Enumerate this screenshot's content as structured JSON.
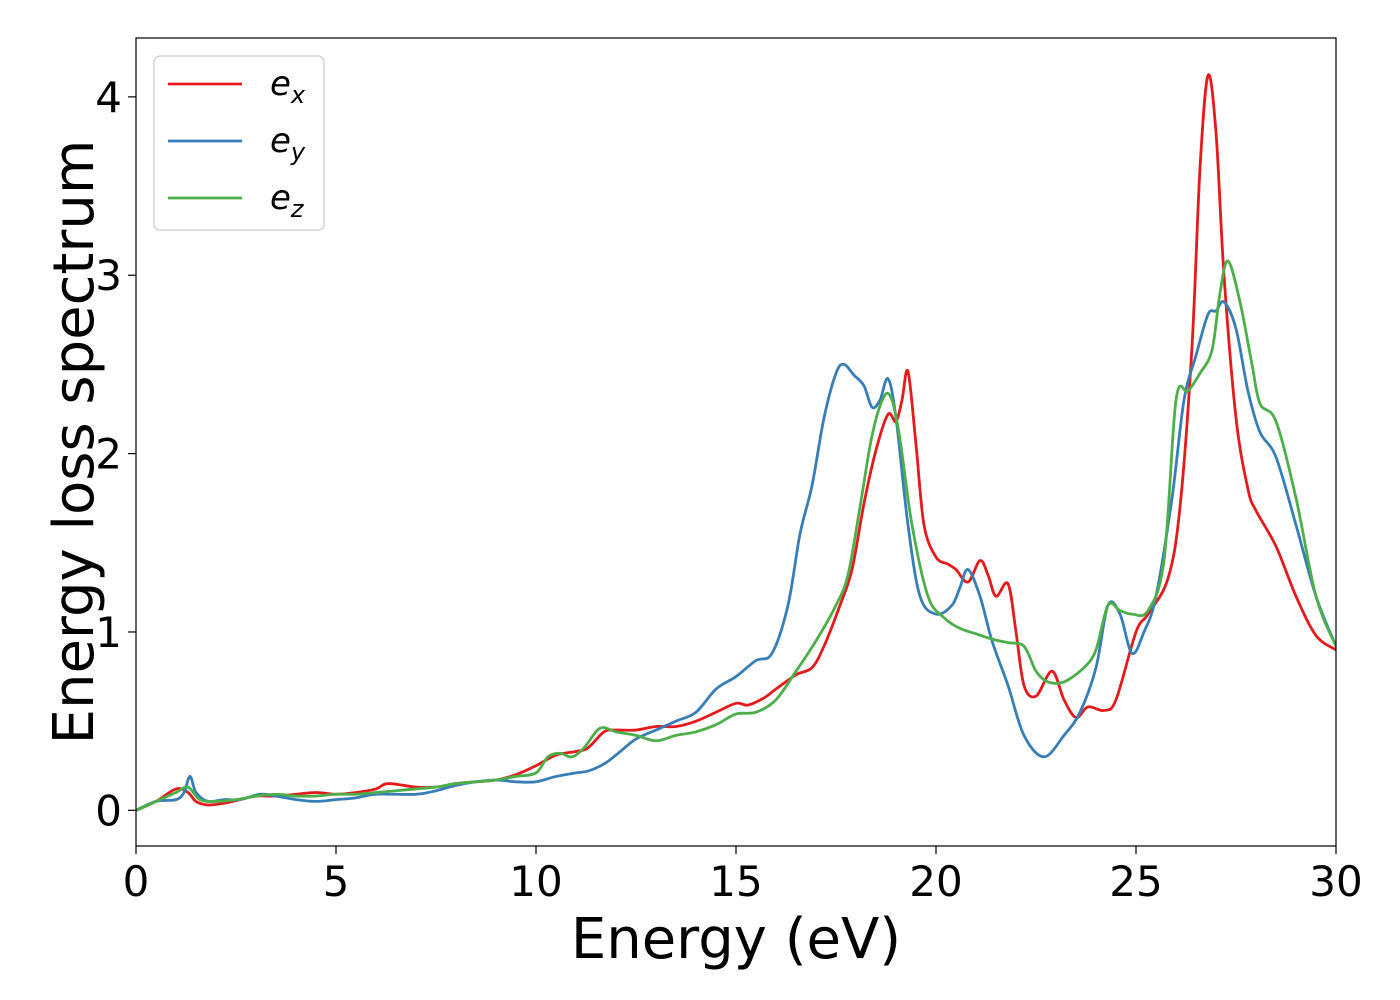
{
  "chart_data": {
    "type": "line",
    "xlabel": "Energy (eV)",
    "ylabel": "Energy loss spectrum",
    "xlim": [
      0,
      30
    ],
    "ylim": [
      -0.2,
      4.33
    ],
    "xticks": [
      0,
      5,
      10,
      15,
      20,
      25,
      30
    ],
    "yticks": [
      0,
      1,
      2,
      3,
      4
    ],
    "grid": false,
    "legend": "upper-left",
    "series": [
      {
        "name": "e",
        "sub": "x",
        "color": "#e41a1c",
        "points": [
          [
            0,
            0
          ],
          [
            0.5,
            0.05
          ],
          [
            1.0,
            0.12
          ],
          [
            1.3,
            0.1
          ],
          [
            1.5,
            0.05
          ],
          [
            1.8,
            0.03
          ],
          [
            2.2,
            0.04
          ],
          [
            2.6,
            0.06
          ],
          [
            3,
            0.08
          ],
          [
            3.5,
            0.08
          ],
          [
            4,
            0.09
          ],
          [
            4.5,
            0.1
          ],
          [
            5,
            0.09
          ],
          [
            5.5,
            0.1
          ],
          [
            6,
            0.12
          ],
          [
            6.3,
            0.15
          ],
          [
            7,
            0.13
          ],
          [
            7.5,
            0.13
          ],
          [
            8,
            0.15
          ],
          [
            8.5,
            0.16
          ],
          [
            9,
            0.17
          ],
          [
            9.5,
            0.2
          ],
          [
            10,
            0.25
          ],
          [
            10.5,
            0.31
          ],
          [
            11,
            0.33
          ],
          [
            11.3,
            0.35
          ],
          [
            11.7,
            0.44
          ],
          [
            12,
            0.45
          ],
          [
            12.5,
            0.45
          ],
          [
            13,
            0.47
          ],
          [
            13.5,
            0.47
          ],
          [
            14,
            0.5
          ],
          [
            14.5,
            0.55
          ],
          [
            15,
            0.6
          ],
          [
            15.3,
            0.59
          ],
          [
            15.7,
            0.63
          ],
          [
            16,
            0.68
          ],
          [
            16.5,
            0.76
          ],
          [
            16.9,
            0.8
          ],
          [
            17.2,
            0.92
          ],
          [
            17.6,
            1.15
          ],
          [
            17.9,
            1.35
          ],
          [
            18.2,
            1.72
          ],
          [
            18.5,
            2.02
          ],
          [
            18.8,
            2.22
          ],
          [
            19.0,
            2.18
          ],
          [
            19.15,
            2.3
          ],
          [
            19.3,
            2.46
          ],
          [
            19.5,
            2.05
          ],
          [
            19.7,
            1.6
          ],
          [
            20,
            1.42
          ],
          [
            20.3,
            1.38
          ],
          [
            20.5,
            1.35
          ],
          [
            20.8,
            1.28
          ],
          [
            21.1,
            1.4
          ],
          [
            21.3,
            1.32
          ],
          [
            21.5,
            1.2
          ],
          [
            21.8,
            1.27
          ],
          [
            22,
            1.0
          ],
          [
            22.2,
            0.7
          ],
          [
            22.5,
            0.64
          ],
          [
            22.9,
            0.78
          ],
          [
            23.2,
            0.62
          ],
          [
            23.5,
            0.52
          ],
          [
            23.8,
            0.58
          ],
          [
            24.2,
            0.56
          ],
          [
            24.5,
            0.62
          ],
          [
            25,
            1.0
          ],
          [
            25.3,
            1.1
          ],
          [
            25.8,
            1.3
          ],
          [
            26.1,
            1.7
          ],
          [
            26.4,
            2.6
          ],
          [
            26.6,
            3.6
          ],
          [
            26.8,
            4.12
          ],
          [
            27.0,
            3.8
          ],
          [
            27.2,
            3.0
          ],
          [
            27.5,
            2.2
          ],
          [
            27.8,
            1.8
          ],
          [
            28,
            1.68
          ],
          [
            28.5,
            1.48
          ],
          [
            29,
            1.2
          ],
          [
            29.5,
            0.98
          ],
          [
            30,
            0.9
          ]
        ]
      },
      {
        "name": "e",
        "sub": "y",
        "color": "#377eb8",
        "points": [
          [
            0,
            0
          ],
          [
            0.5,
            0.05
          ],
          [
            1.0,
            0.06
          ],
          [
            1.2,
            0.1
          ],
          [
            1.35,
            0.19
          ],
          [
            1.5,
            0.1
          ],
          [
            1.8,
            0.05
          ],
          [
            2.2,
            0.06
          ],
          [
            2.6,
            0.06
          ],
          [
            3.1,
            0.09
          ],
          [
            3.5,
            0.08
          ],
          [
            4,
            0.06
          ],
          [
            4.5,
            0.05
          ],
          [
            5,
            0.06
          ],
          [
            5.5,
            0.07
          ],
          [
            6,
            0.09
          ],
          [
            7,
            0.09
          ],
          [
            7.5,
            0.11
          ],
          [
            8,
            0.14
          ],
          [
            8.5,
            0.16
          ],
          [
            9,
            0.17
          ],
          [
            9.5,
            0.16
          ],
          [
            10,
            0.16
          ],
          [
            10.5,
            0.19
          ],
          [
            11,
            0.21
          ],
          [
            11.3,
            0.22
          ],
          [
            11.7,
            0.26
          ],
          [
            12,
            0.31
          ],
          [
            12.5,
            0.4
          ],
          [
            13,
            0.45
          ],
          [
            13.5,
            0.5
          ],
          [
            14,
            0.55
          ],
          [
            14.5,
            0.68
          ],
          [
            15,
            0.75
          ],
          [
            15.5,
            0.84
          ],
          [
            15.9,
            0.88
          ],
          [
            16.3,
            1.15
          ],
          [
            16.6,
            1.55
          ],
          [
            16.9,
            1.82
          ],
          [
            17.2,
            2.2
          ],
          [
            17.5,
            2.45
          ],
          [
            17.7,
            2.5
          ],
          [
            17.95,
            2.44
          ],
          [
            18.2,
            2.38
          ],
          [
            18.4,
            2.26
          ],
          [
            18.6,
            2.3
          ],
          [
            18.8,
            2.42
          ],
          [
            19.0,
            2.2
          ],
          [
            19.3,
            1.6
          ],
          [
            19.6,
            1.2
          ],
          [
            20,
            1.1
          ],
          [
            20.4,
            1.15
          ],
          [
            20.6,
            1.25
          ],
          [
            20.8,
            1.35
          ],
          [
            21.1,
            1.2
          ],
          [
            21.4,
            0.95
          ],
          [
            21.8,
            0.7
          ],
          [
            22.2,
            0.42
          ],
          [
            22.7,
            0.3
          ],
          [
            23.2,
            0.42
          ],
          [
            23.6,
            0.55
          ],
          [
            24.0,
            0.8
          ],
          [
            24.3,
            1.15
          ],
          [
            24.6,
            1.1
          ],
          [
            24.9,
            0.88
          ],
          [
            25.2,
            1.0
          ],
          [
            25.5,
            1.2
          ],
          [
            25.9,
            1.75
          ],
          [
            26.2,
            2.3
          ],
          [
            26.5,
            2.55
          ],
          [
            26.8,
            2.78
          ],
          [
            27.0,
            2.8
          ],
          [
            27.2,
            2.85
          ],
          [
            27.5,
            2.7
          ],
          [
            27.8,
            2.35
          ],
          [
            28.1,
            2.12
          ],
          [
            28.5,
            1.98
          ],
          [
            29,
            1.6
          ],
          [
            29.5,
            1.2
          ],
          [
            30,
            0.92
          ]
        ]
      },
      {
        "name": "e",
        "sub": "z",
        "color": "#4daf4a",
        "points": [
          [
            0,
            0
          ],
          [
            0.5,
            0.05
          ],
          [
            1.0,
            0.1
          ],
          [
            1.3,
            0.13
          ],
          [
            1.6,
            0.06
          ],
          [
            2.0,
            0.05
          ],
          [
            2.5,
            0.06
          ],
          [
            3,
            0.08
          ],
          [
            3.5,
            0.09
          ],
          [
            4,
            0.08
          ],
          [
            4.5,
            0.08
          ],
          [
            5,
            0.09
          ],
          [
            5.5,
            0.09
          ],
          [
            6,
            0.1
          ],
          [
            6.5,
            0.11
          ],
          [
            7,
            0.12
          ],
          [
            7.5,
            0.13
          ],
          [
            8,
            0.15
          ],
          [
            8.5,
            0.16
          ],
          [
            9,
            0.17
          ],
          [
            9.5,
            0.19
          ],
          [
            10,
            0.21
          ],
          [
            10.3,
            0.3
          ],
          [
            10.6,
            0.32
          ],
          [
            10.9,
            0.3
          ],
          [
            11.2,
            0.35
          ],
          [
            11.6,
            0.46
          ],
          [
            12,
            0.44
          ],
          [
            12.5,
            0.42
          ],
          [
            13,
            0.39
          ],
          [
            13.5,
            0.42
          ],
          [
            14,
            0.44
          ],
          [
            14.5,
            0.48
          ],
          [
            15,
            0.54
          ],
          [
            15.5,
            0.55
          ],
          [
            16,
            0.62
          ],
          [
            16.5,
            0.78
          ],
          [
            17,
            0.95
          ],
          [
            17.5,
            1.15
          ],
          [
            17.8,
            1.32
          ],
          [
            18.1,
            1.7
          ],
          [
            18.4,
            2.1
          ],
          [
            18.7,
            2.32
          ],
          [
            18.9,
            2.3
          ],
          [
            19.1,
            2.08
          ],
          [
            19.4,
            1.6
          ],
          [
            19.8,
            1.2
          ],
          [
            20.2,
            1.08
          ],
          [
            20.6,
            1.02
          ],
          [
            21,
            0.99
          ],
          [
            21.4,
            0.96
          ],
          [
            21.8,
            0.94
          ],
          [
            22.2,
            0.92
          ],
          [
            22.5,
            0.78
          ],
          [
            22.8,
            0.72
          ],
          [
            23.2,
            0.72
          ],
          [
            23.7,
            0.8
          ],
          [
            24.0,
            0.9
          ],
          [
            24.3,
            1.15
          ],
          [
            24.6,
            1.12
          ],
          [
            24.9,
            1.1
          ],
          [
            25.3,
            1.12
          ],
          [
            25.7,
            1.4
          ],
          [
            26.0,
            2.3
          ],
          [
            26.3,
            2.35
          ],
          [
            26.6,
            2.45
          ],
          [
            26.9,
            2.58
          ],
          [
            27.1,
            2.9
          ],
          [
            27.3,
            3.08
          ],
          [
            27.6,
            2.85
          ],
          [
            27.9,
            2.5
          ],
          [
            28.1,
            2.28
          ],
          [
            28.5,
            2.18
          ],
          [
            29,
            1.75
          ],
          [
            29.5,
            1.2
          ],
          [
            30,
            0.92
          ]
        ]
      }
    ]
  }
}
